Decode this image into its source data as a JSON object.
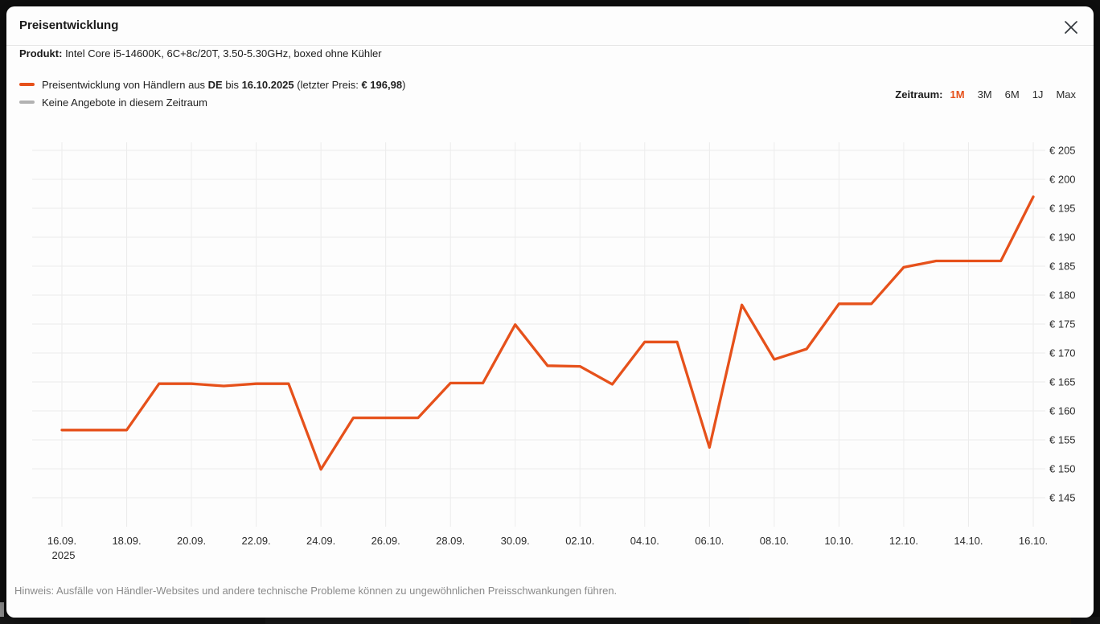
{
  "dialog": {
    "title": "Preisentwicklung",
    "product_label": "Produkt:",
    "product_name": " Intel Core i5-14600K, 6C+8c/20T, 3.50-5.30GHz, boxed ohne Kühler",
    "hint": "Hinweis: Ausfälle von Händler-Websites und andere technische Probleme können zu ungewöhnlichen Preisschwankungen führen."
  },
  "legend": {
    "series1": {
      "t1": "Preisentwicklung von Händlern aus ",
      "country": "DE",
      "t2": " bis ",
      "date": "16.10.2025",
      "t3": " (letzter Preis: ",
      "price": "€ 196,98",
      "t4": ")"
    },
    "series2": "Keine Angebote in diesem Zeitraum"
  },
  "range_selector": {
    "label": "Zeitraum:",
    "options": [
      {
        "label": "1M",
        "active": true
      },
      {
        "label": "3M",
        "active": false
      },
      {
        "label": "6M",
        "active": false
      },
      {
        "label": "1J",
        "active": false
      },
      {
        "label": "Max",
        "active": false
      }
    ]
  },
  "colors": {
    "accent": "#e6511b",
    "no_offers": "#b2b2b2",
    "gridline": "#ececec",
    "axis_text": "#2a2a2a"
  },
  "chart_data": {
    "type": "line",
    "title": "Preisentwicklung",
    "xlabel": "",
    "ylabel": "",
    "currency_prefix": "€ ",
    "year": "2025",
    "ylim": [
      145,
      205
    ],
    "y_step": 5,
    "grid": true,
    "legend_position": "top-left",
    "legend_entries": [
      "Preisentwicklung von Händlern aus DE bis 16.10.2025 (letzter Preis: € 196,98)",
      "Keine Angebote in diesem Zeitraum"
    ],
    "dates": [
      "16.09.",
      "17.09.",
      "18.09.",
      "19.09.",
      "20.09.",
      "21.09.",
      "22.09.",
      "23.09.",
      "24.09.",
      "25.09.",
      "26.09.",
      "27.09.",
      "28.09.",
      "29.09.",
      "30.09.",
      "01.10.",
      "02.10.",
      "03.10.",
      "04.10.",
      "05.10.",
      "06.10.",
      "07.10.",
      "08.10.",
      "09.10.",
      "10.10.",
      "11.10.",
      "12.10.",
      "13.10.",
      "14.10.",
      "15.10.",
      "16.10."
    ],
    "values": [
      156.7,
      156.7,
      156.7,
      164.7,
      164.7,
      164.3,
      164.7,
      164.7,
      149.9,
      158.8,
      158.8,
      158.8,
      164.8,
      164.8,
      174.9,
      167.8,
      167.7,
      164.6,
      171.9,
      171.9,
      153.7,
      178.3,
      168.9,
      170.7,
      178.5,
      178.5,
      184.8,
      185.9,
      185.9,
      185.9,
      196.98
    ],
    "x_ticks": [
      "16.09.",
      "18.09.",
      "20.09.",
      "22.09.",
      "24.09.",
      "26.09.",
      "28.09.",
      "30.09.",
      "02.10.",
      "04.10.",
      "06.10.",
      "08.10.",
      "10.10.",
      "12.10.",
      "14.10.",
      "16.10."
    ],
    "last_price": "€ 196,98",
    "series_name": "Preisentwicklung von Händlern aus DE"
  }
}
